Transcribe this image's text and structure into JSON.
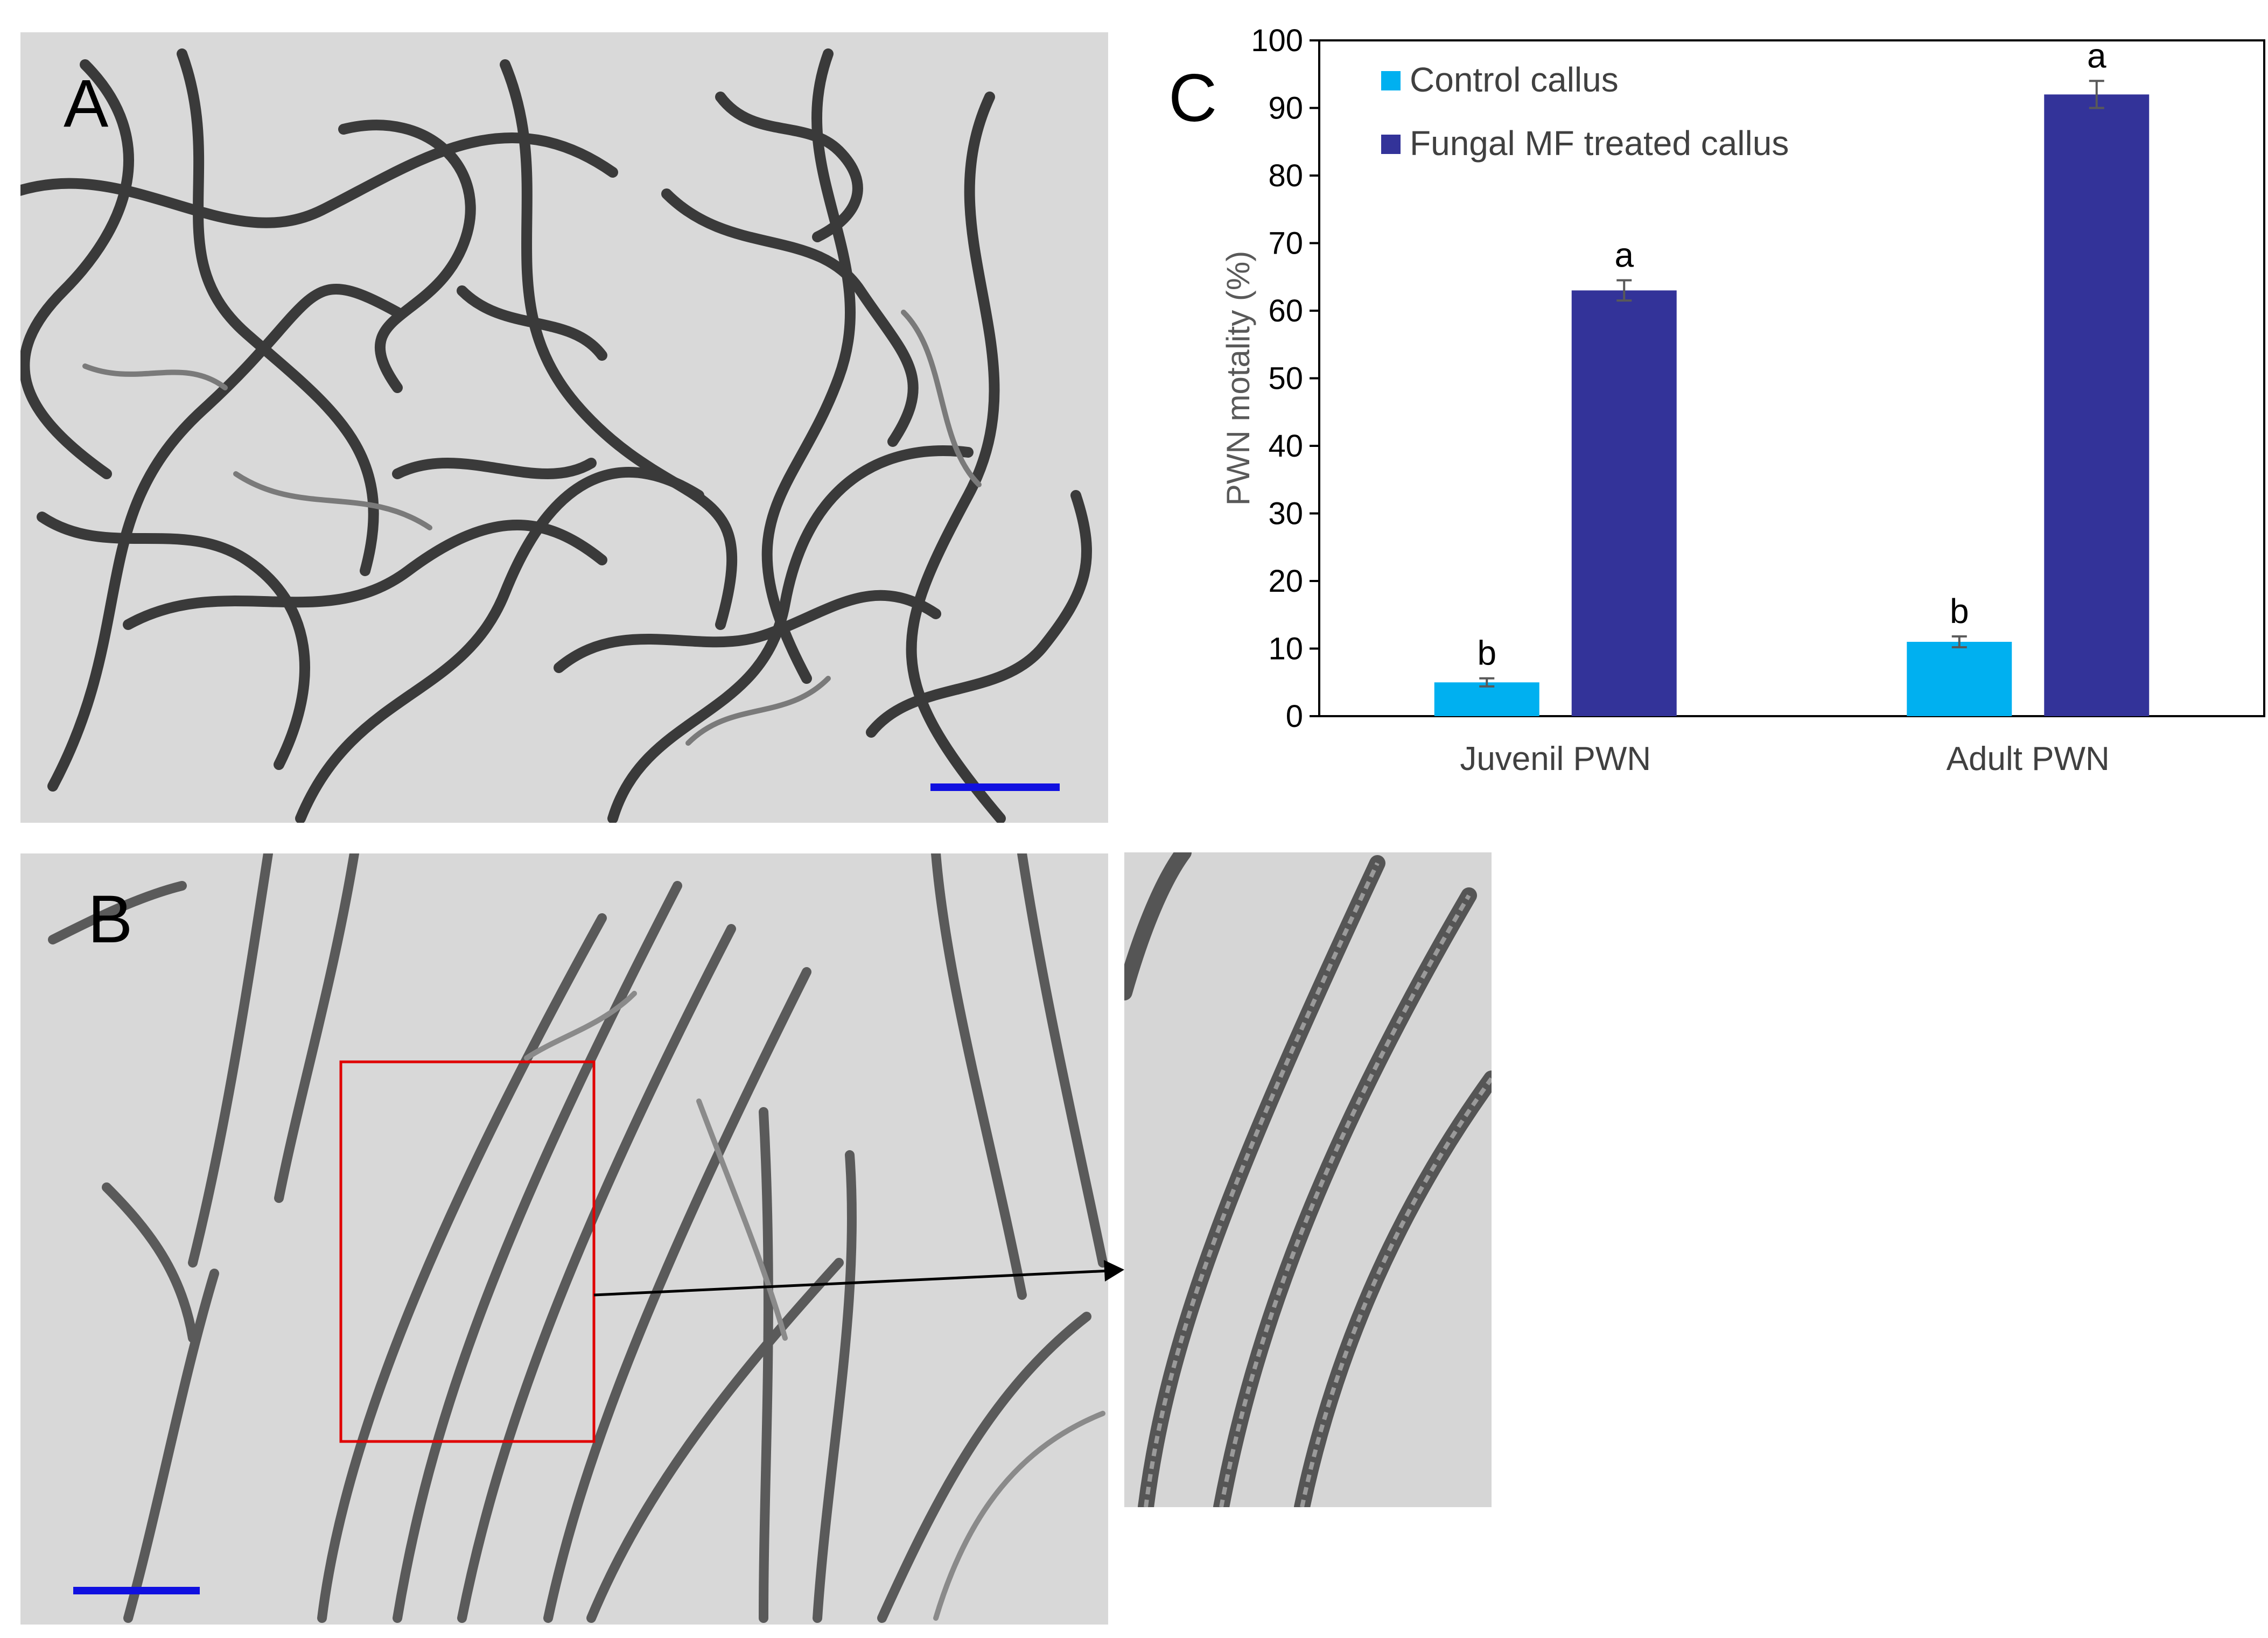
{
  "panel_labels": {
    "a": "A",
    "b": "B",
    "c": "C"
  },
  "colors": {
    "control": "#00b0f0",
    "treated": "#333399",
    "scale_bar": "#1010e0",
    "highlight_box": "#e00000",
    "micrograph_bg": "#d7d7d7",
    "nematode": "#3c3c3c"
  },
  "chart_data": {
    "type": "bar",
    "categories": [
      "Juvenil PWN",
      "Adult PWN"
    ],
    "series": [
      {
        "name": "Control callus",
        "values": [
          5,
          11
        ],
        "errors": [
          0.6,
          0.8
        ],
        "letters": [
          "b",
          "b"
        ],
        "color": "#00b0f0"
      },
      {
        "name": "Fungal MF treated callus",
        "values": [
          63,
          92
        ],
        "errors": [
          1.5,
          2.0
        ],
        "letters": [
          "a",
          "a"
        ],
        "color": "#333399"
      }
    ],
    "xlabel": "",
    "ylabel": "PWN motality (%)",
    "ylim": [
      0,
      100
    ],
    "yticks": [
      0,
      10,
      20,
      30,
      40,
      50,
      60,
      70,
      80,
      90,
      100
    ],
    "legend_position": "top-left",
    "grid": false
  }
}
